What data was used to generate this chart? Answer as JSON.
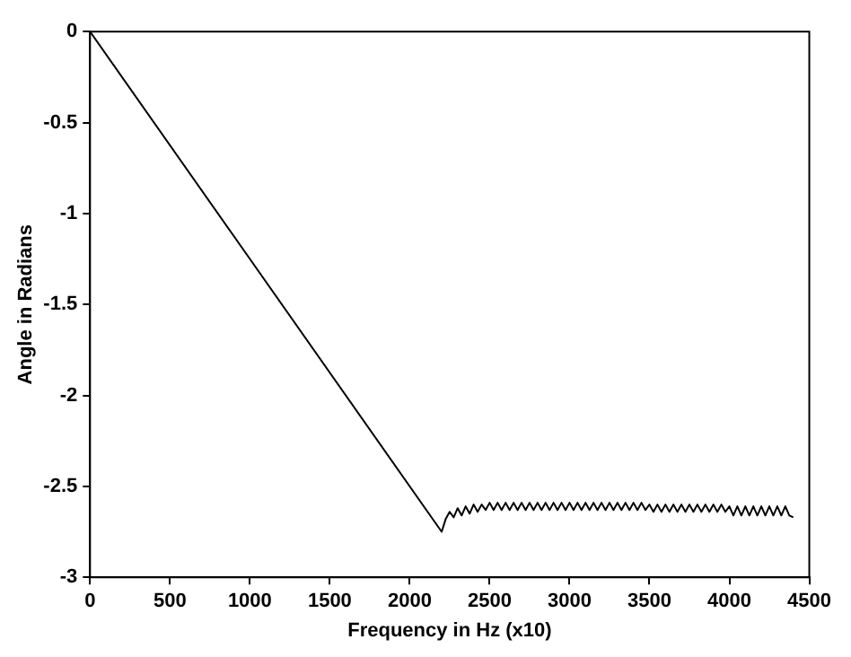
{
  "chart_data": {
    "type": "line",
    "xlabel": "Frequency in Hz (x10)",
    "ylabel": "Angle in Radians",
    "xlim": [
      0,
      4500
    ],
    "ylim": [
      -3,
      0
    ],
    "xticks": [
      0,
      500,
      1000,
      1500,
      2000,
      2500,
      3000,
      3500,
      4000,
      4500
    ],
    "yticks": [
      -3,
      -2.5,
      -2,
      -1.5,
      -1,
      -0.5,
      0
    ],
    "grid": false,
    "marker": "none",
    "line_style": "solid",
    "legend": false,
    "series": [
      {
        "color": "#000000",
        "x": [
          0,
          2200,
          2225,
          2250,
          2275,
          2300,
          2325,
          2350,
          2375,
          2400,
          2425,
          2450,
          2475,
          2500,
          2525,
          2550,
          2575,
          2600,
          2625,
          2650,
          2675,
          2700,
          2725,
          2750,
          2775,
          2800,
          2825,
          2850,
          2875,
          2900,
          2925,
          2950,
          2975,
          3000,
          3025,
          3050,
          3075,
          3100,
          3125,
          3150,
          3175,
          3200,
          3225,
          3250,
          3275,
          3300,
          3325,
          3350,
          3375,
          3400,
          3425,
          3450,
          3475,
          3500,
          3525,
          3550,
          3575,
          3600,
          3625,
          3650,
          3675,
          3700,
          3725,
          3750,
          3775,
          3800,
          3825,
          3850,
          3875,
          3900,
          3925,
          3950,
          3975,
          4000,
          4025,
          4050,
          4075,
          4100,
          4125,
          4150,
          4175,
          4200,
          4225,
          4250,
          4275,
          4300,
          4325,
          4350,
          4375,
          4400
        ],
        "values": [
          0,
          -2.75,
          -2.68,
          -2.64,
          -2.67,
          -2.62,
          -2.66,
          -2.61,
          -2.65,
          -2.6,
          -2.64,
          -2.6,
          -2.63,
          -2.59,
          -2.63,
          -2.59,
          -2.63,
          -2.59,
          -2.63,
          -2.59,
          -2.63,
          -2.59,
          -2.63,
          -2.59,
          -2.63,
          -2.59,
          -2.63,
          -2.59,
          -2.63,
          -2.59,
          -2.63,
          -2.59,
          -2.63,
          -2.59,
          -2.63,
          -2.59,
          -2.63,
          -2.59,
          -2.63,
          -2.59,
          -2.63,
          -2.59,
          -2.63,
          -2.59,
          -2.63,
          -2.59,
          -2.63,
          -2.59,
          -2.63,
          -2.59,
          -2.63,
          -2.59,
          -2.63,
          -2.6,
          -2.64,
          -2.6,
          -2.64,
          -2.6,
          -2.64,
          -2.6,
          -2.64,
          -2.6,
          -2.64,
          -2.6,
          -2.64,
          -2.6,
          -2.64,
          -2.6,
          -2.64,
          -2.6,
          -2.64,
          -2.6,
          -2.64,
          -2.61,
          -2.66,
          -2.61,
          -2.66,
          -2.61,
          -2.66,
          -2.61,
          -2.66,
          -2.61,
          -2.66,
          -2.61,
          -2.66,
          -2.61,
          -2.66,
          -2.61,
          -2.66,
          -2.67
        ]
      }
    ]
  }
}
